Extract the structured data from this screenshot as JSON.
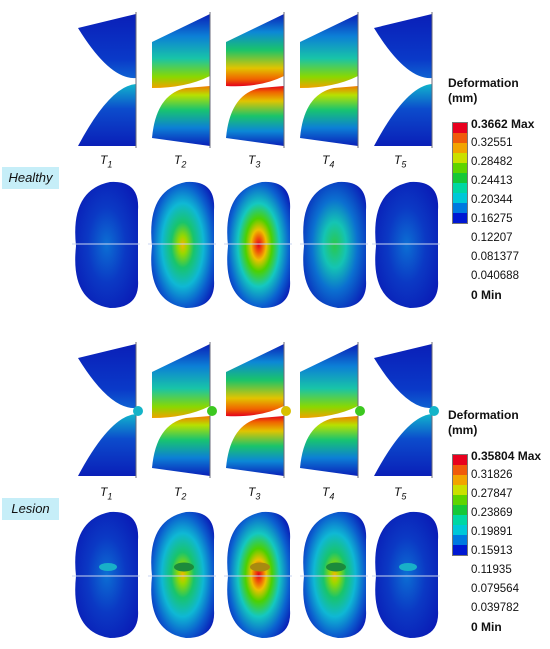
{
  "legend": {
    "title_line1": "Deformation",
    "title_line2": "(mm)",
    "colors": [
      "#e8001e",
      "#f05a0a",
      "#f2a400",
      "#cbe000",
      "#5ed400",
      "#15c837",
      "#00d7a3",
      "#00c8d8",
      "#0079e0",
      "#0018d2"
    ]
  },
  "healthy": {
    "label": "Healthy",
    "ticks": [
      "0.3662 Max",
      "0.32551",
      "0.28482",
      "0.24413",
      "0.20344",
      "0.16275",
      "0.12207",
      "0.081377",
      "0.040688",
      "0 Min"
    ],
    "time_labels": [
      {
        "letter": "T",
        "sub": "1"
      },
      {
        "letter": "T",
        "sub": "2"
      },
      {
        "letter": "T",
        "sub": "3"
      },
      {
        "letter": "T",
        "sub": "4"
      },
      {
        "letter": "T",
        "sub": "5"
      }
    ]
  },
  "lesion": {
    "label": "Lesion",
    "ticks": [
      "0.35804 Max",
      "0.31826",
      "0.27847",
      "0.23869",
      "0.19891",
      "0.15913",
      "0.11935",
      "0.079564",
      "0.039782",
      "0 Min"
    ],
    "time_labels": [
      {
        "letter": "T",
        "sub": "1"
      },
      {
        "letter": "T",
        "sub": "2"
      },
      {
        "letter": "T",
        "sub": "3"
      },
      {
        "letter": "T",
        "sub": "4"
      },
      {
        "letter": "T",
        "sub": "5"
      }
    ]
  }
}
